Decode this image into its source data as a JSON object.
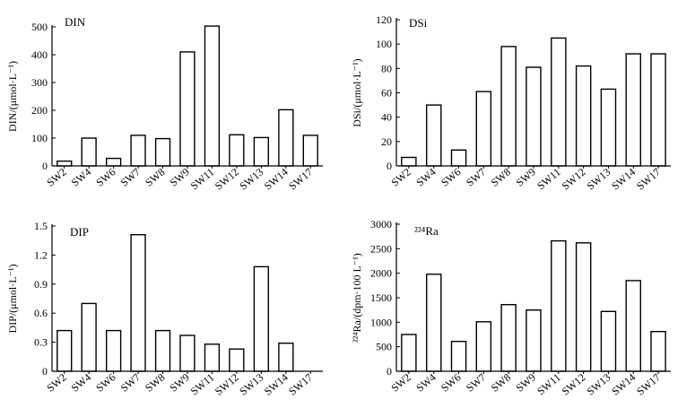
{
  "chart_data": [
    {
      "type": "bar",
      "title": "DIN",
      "ylabel": "DIN/(μmol·L⁻¹)",
      "xlabel": "",
      "categories": [
        "SW2",
        "SW4",
        "SW6",
        "SW7",
        "SW8",
        "SW9",
        "SW11",
        "SW12",
        "SW13",
        "SW14",
        "SW17"
      ],
      "values": [
        17,
        100,
        27,
        110,
        98,
        410,
        503,
        112,
        102,
        202,
        110
      ],
      "ylim": [
        0,
        500
      ],
      "yticks": [
        0,
        100,
        200,
        300,
        400,
        500
      ],
      "ytick_labels": [
        "0",
        "100",
        "200",
        "300",
        "400",
        "500"
      ]
    },
    {
      "type": "bar",
      "title": "DSi",
      "ylabel": "DSi/(μmol·L⁻¹)",
      "xlabel": "",
      "categories": [
        "SW2",
        "SW4",
        "SW6",
        "SW7",
        "SW8",
        "SW9",
        "SW11",
        "SW12",
        "SW13",
        "SW14",
        "SW17"
      ],
      "values": [
        7,
        50,
        13,
        61,
        98,
        81,
        105,
        82,
        63,
        92,
        92
      ],
      "ylim": [
        0,
        120
      ],
      "yticks": [
        0,
        20,
        40,
        60,
        80,
        100,
        120
      ],
      "ytick_labels": [
        "0",
        "20",
        "40",
        "60",
        "80",
        "100",
        "120"
      ]
    },
    {
      "type": "bar",
      "title": "DIP",
      "ylabel": "DIP/(μmol·L⁻¹)",
      "xlabel": "",
      "categories": [
        "SW2",
        "SW4",
        "SW6",
        "SW7",
        "SW8",
        "SW9",
        "SW11",
        "SW12",
        "SW13",
        "SW14",
        "SW17"
      ],
      "values": [
        0.42,
        0.7,
        0.42,
        1.41,
        0.42,
        0.37,
        0.28,
        0.23,
        1.08,
        0.29,
        0
      ],
      "ylim": [
        0,
        1.5
      ],
      "yticks": [
        0,
        0.3,
        0.6,
        0.9,
        1.2,
        1.5
      ],
      "ytick_labels": [
        "0",
        "0.3",
        "0.6",
        "0.9",
        "1.2",
        "1.5"
      ]
    },
    {
      "type": "bar",
      "title": "²²⁴Ra",
      "ylabel": "²²⁴Ra/(dpm·100 L⁻¹)",
      "xlabel": "",
      "categories": [
        "SW2",
        "SW4",
        "SW6",
        "SW7",
        "SW8",
        "SW9",
        "SW11",
        "SW12",
        "SW13",
        "SW14",
        "SW17"
      ],
      "values": [
        750,
        1980,
        610,
        1010,
        1360,
        1250,
        2660,
        2620,
        1220,
        1850,
        810
      ],
      "ylim": [
        0,
        3000
      ],
      "yticks": [
        0,
        500,
        1000,
        1500,
        2000,
        2500,
        3000
      ],
      "ytick_labels": [
        "0",
        "500",
        "1000",
        "1500",
        "2000",
        "2500",
        "3000"
      ]
    }
  ]
}
